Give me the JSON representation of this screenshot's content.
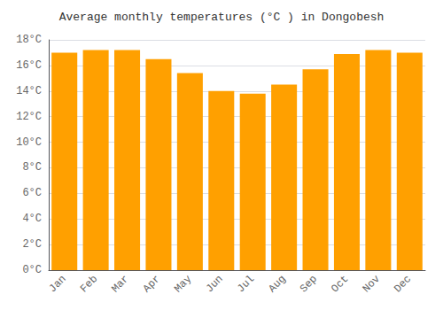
{
  "chart_data": {
    "type": "bar",
    "title": "Average monthly temperatures (°C ) in Dongobesh",
    "categories": [
      "Jan",
      "Feb",
      "Mar",
      "Apr",
      "May",
      "Jun",
      "Jul",
      "Aug",
      "Sep",
      "Oct",
      "Nov",
      "Dec"
    ],
    "values": [
      17.0,
      17.2,
      17.2,
      16.5,
      15.4,
      14.0,
      13.8,
      14.5,
      15.7,
      16.9,
      17.2,
      17.0
    ],
    "color": "#FFA000",
    "ylim": [
      0,
      18
    ],
    "yticks": [
      {
        "value": 0,
        "label": "0°C"
      },
      {
        "value": 2,
        "label": "2°C"
      },
      {
        "value": 4,
        "label": "4°C"
      },
      {
        "value": 6,
        "label": "6°C"
      },
      {
        "value": 8,
        "label": "8°C"
      },
      {
        "value": 10,
        "label": "10°C"
      },
      {
        "value": 12,
        "label": "12°C"
      },
      {
        "value": 14,
        "label": "14°C"
      },
      {
        "value": 16,
        "label": "16°C"
      },
      {
        "value": 18,
        "label": "18°C"
      }
    ],
    "grid": true
  }
}
